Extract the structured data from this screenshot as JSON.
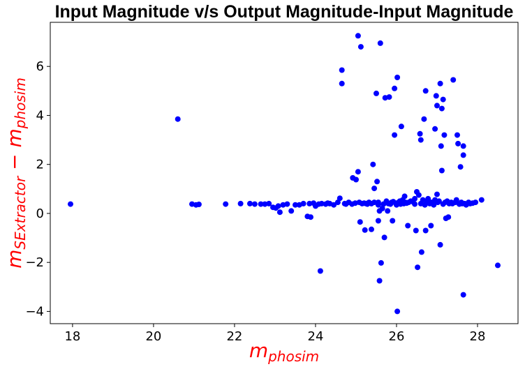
{
  "chart_data": {
    "type": "scatter",
    "title": "Input Magnitude v/s Output Magnitude-Input Magnitude",
    "xlabel": {
      "main": "m",
      "sub": "phosim"
    },
    "ylabel": {
      "main": "m",
      "sub": "SExtractor",
      "sep": " − ",
      "main2": "m",
      "sub2": "phosim"
    },
    "label_color": "#ff0000",
    "marker_color": "#0000ff",
    "xlim": [
      17.45,
      29.0
    ],
    "ylim": [
      -4.5,
      7.8
    ],
    "xticks": [
      18,
      20,
      22,
      24,
      26,
      28
    ],
    "yticks": [
      -4,
      -2,
      0,
      2,
      4,
      6
    ],
    "grid": false,
    "legend": "none",
    "series": [
      {
        "points": [
          [
            17.95,
            0.38
          ],
          [
            20.6,
            3.85
          ],
          [
            20.95,
            0.38
          ],
          [
            21.05,
            0.35
          ],
          [
            21.12,
            0.37
          ],
          [
            21.78,
            0.38
          ],
          [
            22.15,
            0.4
          ],
          [
            22.38,
            0.4
          ],
          [
            22.5,
            0.38
          ],
          [
            22.65,
            0.38
          ],
          [
            22.75,
            0.38
          ],
          [
            22.85,
            0.4
          ],
          [
            22.95,
            0.25
          ],
          [
            23.02,
            0.22
          ],
          [
            23.08,
            0.3
          ],
          [
            23.12,
            0.05
          ],
          [
            23.2,
            0.35
          ],
          [
            23.3,
            0.38
          ],
          [
            23.4,
            0.1
          ],
          [
            23.5,
            0.35
          ],
          [
            23.6,
            0.35
          ],
          [
            23.7,
            0.4
          ],
          [
            23.85,
            0.4
          ],
          [
            23.8,
            -0.12
          ],
          [
            23.88,
            -0.15
          ],
          [
            23.95,
            0.42
          ],
          [
            24.0,
            0.3
          ],
          [
            24.08,
            0.38
          ],
          [
            24.15,
            0.4
          ],
          [
            24.25,
            0.38
          ],
          [
            24.35,
            0.4
          ],
          [
            24.45,
            0.35
          ],
          [
            24.55,
            0.45
          ],
          [
            24.12,
            -2.35
          ],
          [
            24.6,
            0.62
          ],
          [
            24.65,
            5.85
          ],
          [
            24.65,
            5.3
          ],
          [
            24.72,
            0.4
          ],
          [
            24.82,
            0.45
          ],
          [
            24.9,
            0.38
          ],
          [
            24.92,
            1.45
          ],
          [
            24.98,
            0.42
          ],
          [
            25.0,
            1.38
          ],
          [
            25.05,
            7.25
          ],
          [
            25.05,
            1.7
          ],
          [
            25.08,
            0.45
          ],
          [
            25.1,
            -0.35
          ],
          [
            25.12,
            6.8
          ],
          [
            25.15,
            0.4
          ],
          [
            25.2,
            0.42
          ],
          [
            25.22,
            -0.68
          ],
          [
            25.28,
            0.38
          ],
          [
            25.32,
            0.45
          ],
          [
            25.38,
            0.4
          ],
          [
            25.38,
            -0.65
          ],
          [
            25.42,
            2.0
          ],
          [
            25.45,
            1.02
          ],
          [
            25.45,
            0.45
          ],
          [
            25.5,
            4.9
          ],
          [
            25.52,
            1.3
          ],
          [
            25.55,
            0.35
          ],
          [
            25.55,
            -0.3
          ],
          [
            25.55,
            0.45
          ],
          [
            25.58,
            0.1
          ],
          [
            25.58,
            -2.75
          ],
          [
            25.6,
            6.95
          ],
          [
            25.62,
            -2.02
          ],
          [
            25.65,
            0.2
          ],
          [
            25.68,
            0.38
          ],
          [
            25.7,
            -0.98
          ],
          [
            25.72,
            4.72
          ],
          [
            25.75,
            0.5
          ],
          [
            25.78,
            0.1
          ],
          [
            25.8,
            0.4
          ],
          [
            25.82,
            4.75
          ],
          [
            25.88,
            0.45
          ],
          [
            25.9,
            -0.3
          ],
          [
            25.92,
            0.48
          ],
          [
            25.95,
            5.1
          ],
          [
            25.95,
            3.2
          ],
          [
            25.98,
            0.42
          ],
          [
            26.0,
            0.35
          ],
          [
            26.02,
            5.55
          ],
          [
            26.02,
            -4.0
          ],
          [
            26.05,
            0.45
          ],
          [
            26.08,
            0.5
          ],
          [
            26.1,
            0.38
          ],
          [
            26.12,
            3.55
          ],
          [
            26.15,
            0.55
          ],
          [
            26.18,
            0.4
          ],
          [
            26.2,
            0.7
          ],
          [
            26.22,
            0.45
          ],
          [
            26.28,
            -0.5
          ],
          [
            26.3,
            0.45
          ],
          [
            26.35,
            0.5
          ],
          [
            26.4,
            0.48
          ],
          [
            26.45,
            0.38
          ],
          [
            26.48,
            -0.7
          ],
          [
            26.5,
            0.88
          ],
          [
            26.52,
            -2.2
          ],
          [
            26.55,
            0.75
          ],
          [
            26.58,
            3.25
          ],
          [
            26.6,
            3.0
          ],
          [
            26.6,
            0.4
          ],
          [
            26.62,
            -1.58
          ],
          [
            26.65,
            0.55
          ],
          [
            26.68,
            3.85
          ],
          [
            26.7,
            0.35
          ],
          [
            26.72,
            5.0
          ],
          [
            26.72,
            -0.7
          ],
          [
            26.75,
            0.5
          ],
          [
            26.78,
            0.6
          ],
          [
            26.82,
            0.4
          ],
          [
            26.85,
            -0.5
          ],
          [
            26.88,
            0.45
          ],
          [
            26.92,
            0.35
          ],
          [
            26.95,
            3.45
          ],
          [
            26.98,
            4.8
          ],
          [
            27.0,
            4.4
          ],
          [
            27.0,
            0.78
          ],
          [
            27.02,
            0.45
          ],
          [
            27.05,
            0.5
          ],
          [
            27.08,
            5.3
          ],
          [
            27.08,
            -1.28
          ],
          [
            27.1,
            2.75
          ],
          [
            27.12,
            1.75
          ],
          [
            27.12,
            4.28
          ],
          [
            27.15,
            4.65
          ],
          [
            27.15,
            0.38
          ],
          [
            27.18,
            3.2
          ],
          [
            27.2,
            0.45
          ],
          [
            27.22,
            -0.2
          ],
          [
            27.25,
            0.5
          ],
          [
            27.28,
            -0.15
          ],
          [
            27.3,
            0.4
          ],
          [
            27.35,
            0.45
          ],
          [
            27.4,
            5.45
          ],
          [
            27.45,
            0.45
          ],
          [
            27.48,
            0.55
          ],
          [
            27.5,
            3.2
          ],
          [
            27.52,
            2.85
          ],
          [
            27.55,
            0.38
          ],
          [
            27.58,
            1.9
          ],
          [
            27.6,
            0.45
          ],
          [
            27.62,
            0.4
          ],
          [
            27.65,
            2.75
          ],
          [
            27.65,
            2.38
          ],
          [
            27.65,
            -3.32
          ],
          [
            27.68,
            0.4
          ],
          [
            27.72,
            0.35
          ],
          [
            27.78,
            0.45
          ],
          [
            27.82,
            0.4
          ],
          [
            27.95,
            0.45
          ],
          [
            28.1,
            0.55
          ],
          [
            28.5,
            -2.12
          ],
          [
            24.3,
            0.42
          ],
          [
            24.75,
            0.38
          ],
          [
            25.25,
            0.4
          ],
          [
            25.85,
            0.38
          ],
          [
            26.25,
            0.42
          ],
          [
            26.85,
            0.45
          ],
          [
            27.38,
            0.4
          ],
          [
            27.88,
            0.42
          ],
          [
            26.95,
            0.55
          ],
          [
            26.45,
            0.6
          ]
        ]
      }
    ]
  }
}
